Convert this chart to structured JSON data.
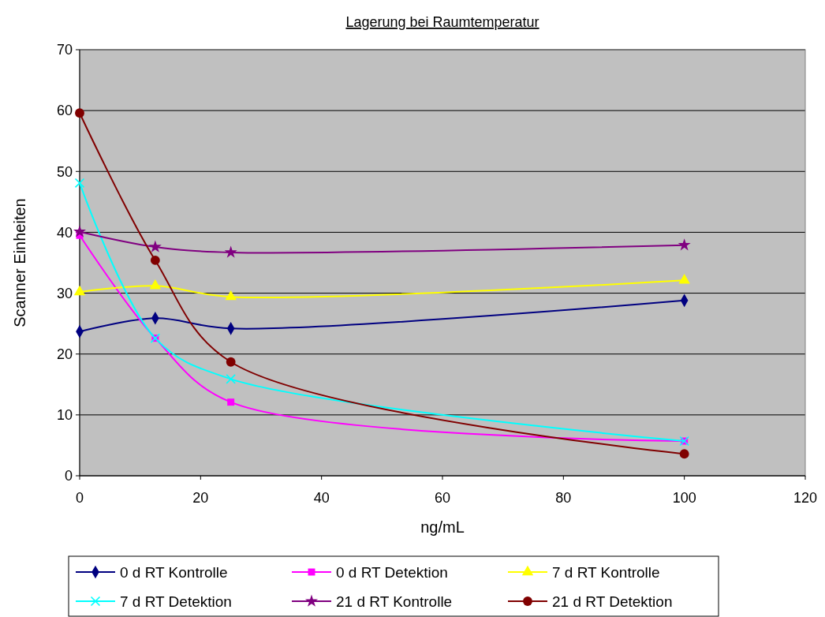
{
  "chart_data": {
    "type": "line",
    "title": "Lagerung bei Raumtemperatur",
    "xlabel": "ng/mL",
    "ylabel": "Scanner Einheiten",
    "x": [
      0,
      12.5,
      25,
      100
    ],
    "xlim": [
      0,
      120
    ],
    "xticks": [
      0,
      20,
      40,
      60,
      80,
      100,
      120
    ],
    "ylim": [
      0,
      70
    ],
    "yticks": [
      0,
      10,
      20,
      30,
      40,
      50,
      60,
      70
    ],
    "grid": "y",
    "legend": "bottom",
    "line_style": "solid",
    "series": [
      {
        "name": "0 d RT Kontrolle",
        "color": "#000080",
        "marker": "diamond",
        "values": [
          23.7,
          25.9,
          24.2,
          28.8
        ]
      },
      {
        "name": "0 d RT Detektion",
        "color": "#ff00ff",
        "marker": "square",
        "values": [
          39.5,
          22.6,
          12.1,
          5.7
        ]
      },
      {
        "name": "7 d RT Kontrolle",
        "color": "#ffff00",
        "marker": "triangle",
        "values": [
          30.2,
          31.2,
          29.4,
          32.1
        ]
      },
      {
        "name": "7 d RT Detektion",
        "color": "#00ffff",
        "marker": "cross",
        "values": [
          48.1,
          22.6,
          15.9,
          5.7
        ]
      },
      {
        "name": "21 d RT Kontrolle",
        "color": "#800080",
        "marker": "star",
        "values": [
          40.1,
          37.6,
          36.7,
          37.9
        ]
      },
      {
        "name": "21 d RT Detektion",
        "color": "#800000",
        "marker": "circle",
        "values": [
          59.6,
          35.4,
          18.7,
          3.6
        ]
      }
    ]
  }
}
